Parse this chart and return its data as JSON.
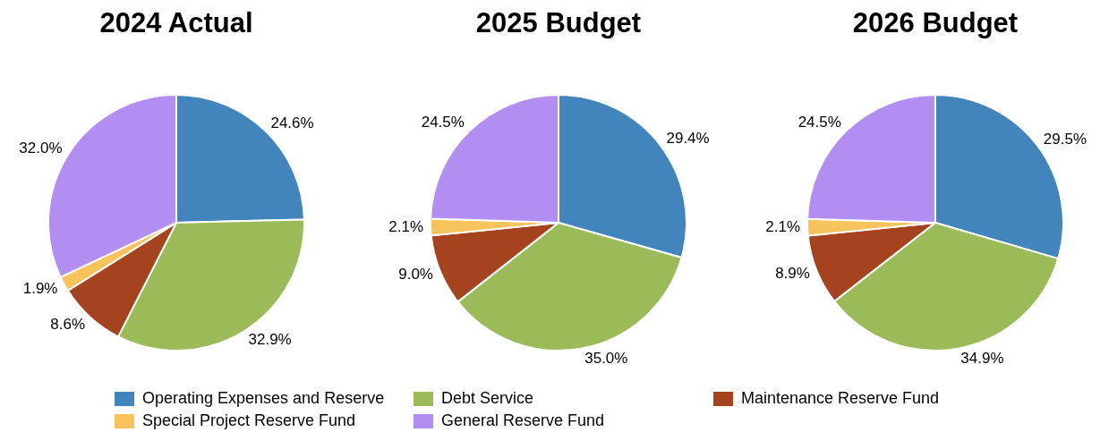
{
  "chart_data": [
    {
      "type": "pie",
      "title": "2024 Actual",
      "categories": [
        "Operating Expenses and Reserve",
        "Debt Service",
        "Maintenance Reserve Fund",
        "Special Project Reserve Fund",
        "General Reserve Fund"
      ],
      "values": [
        24.6,
        32.9,
        8.6,
        1.9,
        32.0
      ],
      "value_labels": [
        "24.6%",
        "32.9%",
        "8.6%",
        "1.9%",
        "32.0%"
      ],
      "colors": [
        "#4285bd",
        "#9bbb59",
        "#a5431f",
        "#f9c35b",
        "#b28ef2"
      ],
      "legend": "bottom"
    },
    {
      "type": "pie",
      "title": "2025 Budget",
      "values": [
        29.4,
        35.0,
        9.0,
        2.1,
        24.5
      ],
      "value_labels": [
        "29.4%",
        "35.0%",
        "9.0%",
        "2.1%",
        "24.5%"
      ],
      "colors": [
        "#4285bd",
        "#9bbb59",
        "#a5431f",
        "#f9c35b",
        "#b28ef2"
      ]
    },
    {
      "type": "pie",
      "title": "2026 Budget",
      "values": [
        29.5,
        34.9,
        8.9,
        2.1,
        24.5
      ],
      "value_labels": [
        "29.5%",
        "34.9%",
        "8.9%",
        "2.1%",
        "24.5%"
      ],
      "colors": [
        "#4285bd",
        "#9bbb59",
        "#a5431f",
        "#f9c35b",
        "#b28ef2"
      ]
    }
  ]
}
